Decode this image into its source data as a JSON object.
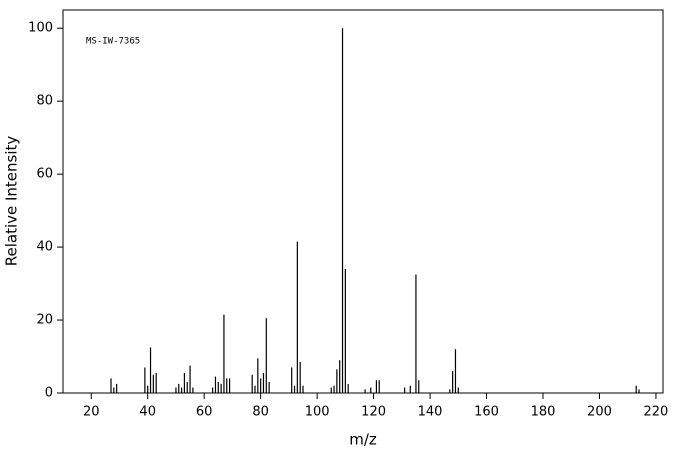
{
  "chart_data": {
    "type": "stem",
    "annotation": "MS-IW-7365",
    "x_label": "m/z",
    "y_label": "Relative Intensity",
    "color": "#000000",
    "x": [
      27,
      28,
      29,
      39,
      40,
      41,
      42,
      43,
      50,
      51,
      52,
      53,
      54,
      55,
      56,
      63,
      64,
      65,
      66,
      67,
      68,
      69,
      77,
      78,
      79,
      80,
      81,
      82,
      83,
      91,
      92,
      93,
      94,
      95,
      105,
      106,
      107,
      108,
      109,
      110,
      111,
      117,
      119,
      121,
      122,
      131,
      133,
      135,
      136,
      147,
      148,
      149,
      150,
      213,
      214
    ],
    "values": [
      4,
      1.5,
      2.5,
      7,
      2,
      12.5,
      5,
      5.5,
      1.5,
      2.5,
      1.5,
      5.5,
      3,
      7.5,
      1.5,
      1.5,
      4.5,
      3,
      2.5,
      21.5,
      4,
      4,
      5,
      2,
      9.5,
      4,
      5.5,
      20.5,
      3,
      7,
      2,
      41.5,
      8.5,
      2,
      1.5,
      2,
      6.5,
      9,
      100,
      34,
      2.5,
      1,
      1.5,
      3.5,
      3.5,
      1.5,
      2,
      32.5,
      3.5,
      1,
      6,
      12,
      1.5,
      2,
      1
    ],
    "xlim": [
      10,
      222.5
    ],
    "ylim": [
      0,
      105
    ],
    "xticks": [
      20,
      40,
      60,
      80,
      100,
      120,
      140,
      160,
      180,
      200,
      220
    ],
    "yticks": [
      0,
      20,
      40,
      60,
      80,
      100
    ]
  }
}
